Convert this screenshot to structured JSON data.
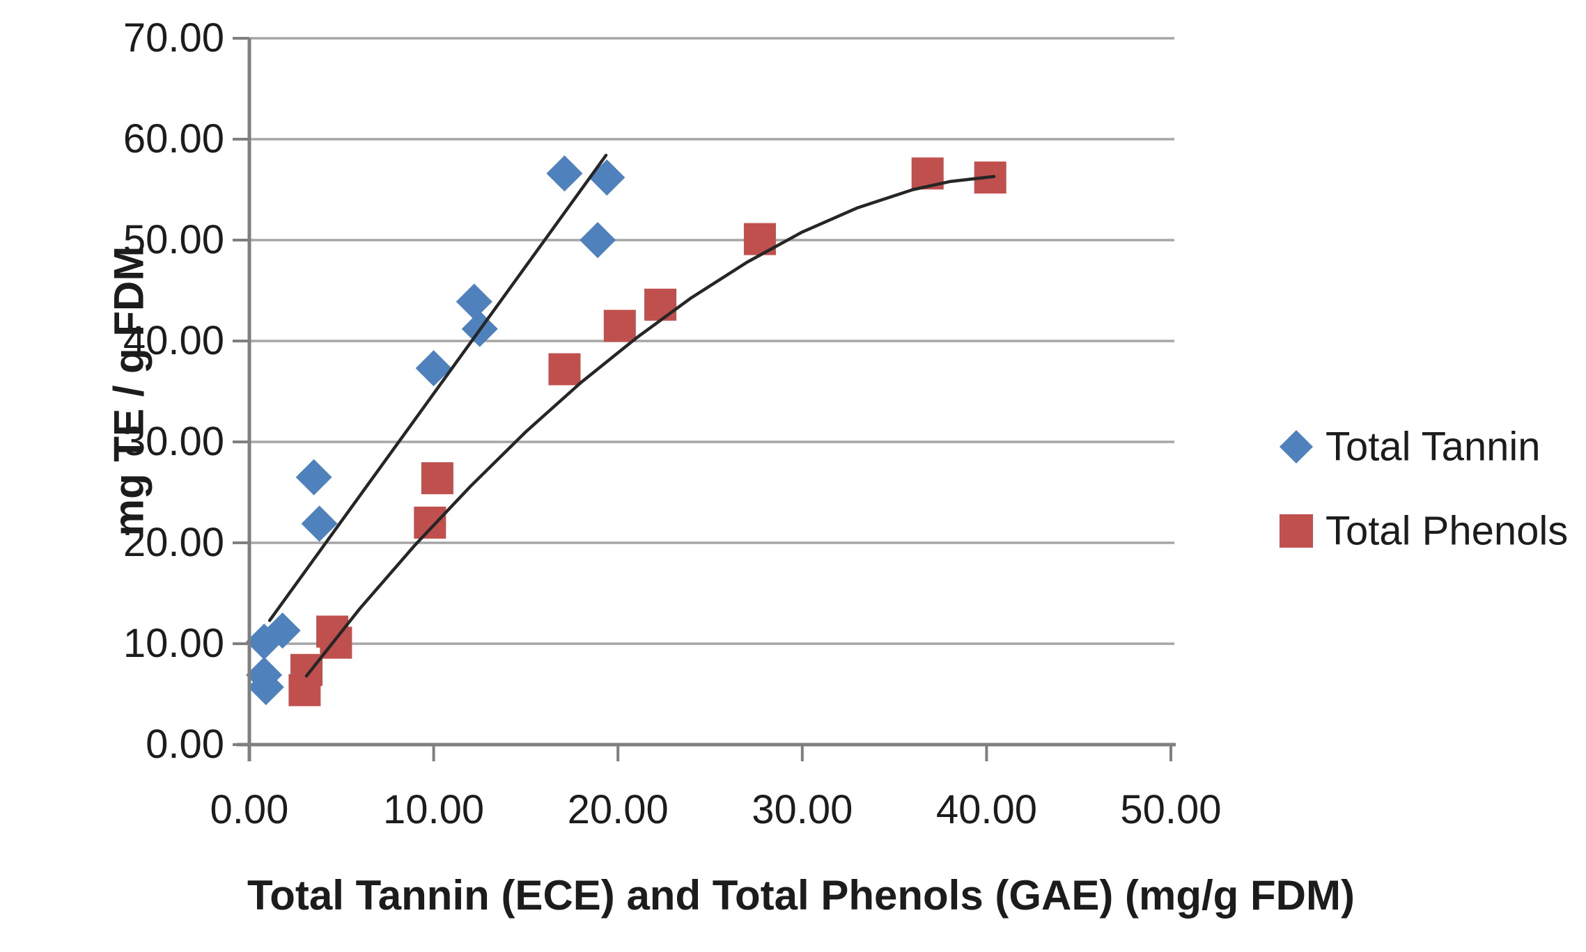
{
  "chart_data": {
    "type": "scatter",
    "title": "",
    "xlabel": "Total Tannin (ECE) and Total Phenols (GAE) (mg/g FDM)",
    "ylabel": "mg TE / g FDM",
    "xlim": [
      0,
      50
    ],
    "ylim": [
      0,
      70
    ],
    "x_tick_labels": [
      "0.00",
      "10.00",
      "20.00",
      "30.00",
      "40.00",
      "50.00"
    ],
    "y_tick_labels": [
      "0.00",
      "10.00",
      "20.00",
      "30.00",
      "40.00",
      "50.00",
      "60.00",
      "70.00"
    ],
    "grid": "horizontal gridlines every 10 units",
    "legend_position": "right outside plot",
    "series": [
      {
        "name": "Total Tannin",
        "marker": "diamond",
        "color": "#4f81bd",
        "points": [
          [
            0.9,
            5.7
          ],
          [
            0.8,
            6.9
          ],
          [
            0.8,
            10.2
          ],
          [
            1.8,
            11.3
          ],
          [
            3.8,
            21.9
          ],
          [
            3.5,
            26.5
          ],
          [
            10.0,
            37.3
          ],
          [
            12.5,
            41.2
          ],
          [
            12.2,
            43.9
          ],
          [
            18.9,
            50.0
          ],
          [
            17.1,
            56.6
          ],
          [
            19.4,
            56.2
          ]
        ],
        "trendline": {
          "type": "linear",
          "color": "#262626",
          "points": [
            [
              1.1,
              12.3
            ],
            [
              19.35,
              58.4
            ]
          ]
        }
      },
      {
        "name": "Total Phenols",
        "marker": "square",
        "color": "#c0504d",
        "points": [
          [
            3.0,
            5.4
          ],
          [
            3.1,
            7.4
          ],
          [
            4.7,
            10.1
          ],
          [
            4.5,
            11.2
          ],
          [
            9.8,
            22.0
          ],
          [
            10.2,
            26.4
          ],
          [
            17.1,
            37.2
          ],
          [
            20.1,
            41.5
          ],
          [
            22.3,
            43.6
          ],
          [
            27.7,
            50.1
          ],
          [
            36.8,
            56.6
          ],
          [
            40.2,
            56.2
          ]
        ],
        "trendline": {
          "type": "polynomial",
          "color": "#262626",
          "points": [
            [
              3.1,
              6.8
            ],
            [
              6.0,
              13.5
            ],
            [
              9.0,
              19.8
            ],
            [
              12.0,
              25.6
            ],
            [
              15.0,
              31.0
            ],
            [
              18.0,
              35.9
            ],
            [
              21.0,
              40.3
            ],
            [
              24.0,
              44.3
            ],
            [
              27.0,
              47.8
            ],
            [
              30.0,
              50.8
            ],
            [
              33.0,
              53.2
            ],
            [
              36.0,
              55.0
            ],
            [
              38.0,
              55.8
            ],
            [
              40.4,
              56.3
            ]
          ]
        }
      }
    ],
    "colors": {
      "background": "#ffffff",
      "gridline": "#a6a6a6",
      "axis": "#7f7f7f",
      "trendline": "#262626",
      "text": "#1c1c1c",
      "total_tannin": "#4f81bd",
      "total_phenols": "#c0504d"
    }
  }
}
